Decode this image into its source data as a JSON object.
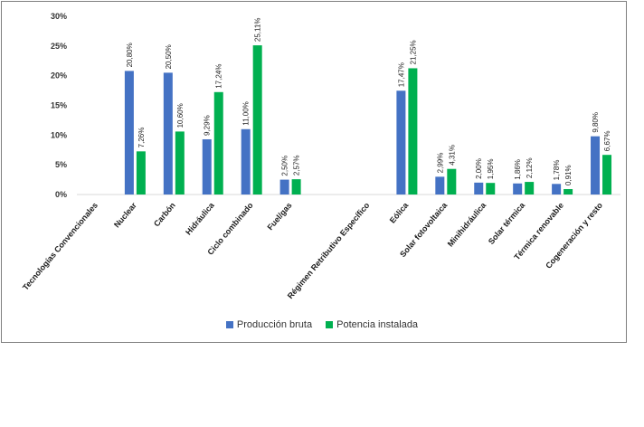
{
  "chart_data": {
    "type": "bar",
    "categories": [
      "Tecnologías Convencionales",
      "Nuclear",
      "Carbón",
      "Hidráulica",
      "Ciclo combinado",
      "Fuel/gas",
      "",
      "Régimen Retributivo Específico",
      "Eólica",
      "Solar fotovoltaica",
      "Minihidráulica",
      "Solar térmica",
      "Térmica renovable",
      "Cogeneración y resto"
    ],
    "series": [
      {
        "name": "Producción bruta",
        "color": "#4472c4",
        "values": [
          null,
          20.8,
          20.5,
          9.29,
          11.0,
          2.5,
          null,
          null,
          17.47,
          2.99,
          2.0,
          1.86,
          1.78,
          9.8
        ],
        "labels": [
          "",
          "20,80%",
          "20,50%",
          "9,29%",
          "11,00%",
          "2,50%",
          "",
          "",
          "17,47%",
          "2,99%",
          "2,00%",
          "1,86%",
          "1,78%",
          "9,80%"
        ]
      },
      {
        "name": "Potencia instalada",
        "color": "#00b050",
        "values": [
          null,
          7.26,
          10.6,
          17.24,
          25.11,
          2.57,
          null,
          null,
          21.25,
          4.31,
          1.95,
          2.12,
          0.91,
          6.67
        ],
        "labels": [
          "",
          "7,26%",
          "10,60%",
          "17,24%",
          "25,11%",
          "2,57%",
          "",
          "",
          "21,25%",
          "4,31%",
          "1,95%",
          "2,12%",
          "0,91%",
          "6,67%"
        ]
      }
    ],
    "y_ticks": [
      "0%",
      "5%",
      "10%",
      "15%",
      "20%",
      "25%",
      "30%"
    ],
    "ylim": [
      0,
      30
    ],
    "grid": false,
    "legend_position": "bottom",
    "title": "",
    "xlabel": "",
    "ylabel": ""
  }
}
